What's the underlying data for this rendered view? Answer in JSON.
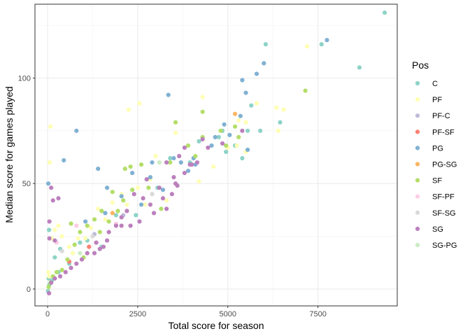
{
  "chart_data": {
    "type": "scatter",
    "title": "",
    "xlabel": "Total score for season",
    "ylabel": "Median score for games played",
    "xlim": [
      -350,
      9700
    ],
    "ylim": [
      -8,
      135
    ],
    "x_ticks": [
      0,
      2500,
      5000,
      7500
    ],
    "x_tick_labels": [
      "0",
      "2500",
      "5000",
      "7500"
    ],
    "y_ticks": [
      0,
      50,
      100
    ],
    "y_tick_labels": [
      "0",
      "50",
      "100"
    ],
    "grid": true,
    "legend": {
      "title": "Pos",
      "placement": "right",
      "entries": [
        "C",
        "PF",
        "PF-C",
        "PF-SF",
        "PG",
        "PG-SG",
        "SF",
        "SF-PF",
        "SF-SG",
        "SG",
        "SG-PG"
      ]
    },
    "colors": {
      "C": "#8DD3C7",
      "PF": "#FFFFB3",
      "PF-C": "#BEBADA",
      "PF-SF": "#FB8072",
      "PG": "#80B1D3",
      "PG-SG": "#FDB462",
      "SF": "#B3DE69",
      "SF-PF": "#FCCDE5",
      "SF-SG": "#D9D9D9",
      "SG": "#BC80BD",
      "SG-PG": "#CCEBC5"
    },
    "series": [
      {
        "name": "C",
        "points": [
          [
            9350,
            131
          ],
          [
            8650,
            105
          ],
          [
            7600,
            116
          ],
          [
            6050,
            116
          ],
          [
            5650,
            87
          ],
          [
            6450,
            79
          ],
          [
            5900,
            75
          ],
          [
            5550,
            75
          ],
          [
            4850,
            75
          ],
          [
            4200,
            70
          ],
          [
            3400,
            62
          ],
          [
            3050,
            48
          ],
          [
            2450,
            35
          ],
          [
            1900,
            35
          ],
          [
            1500,
            20
          ],
          [
            900,
            22
          ],
          [
            600,
            12
          ],
          [
            300,
            8
          ],
          [
            120,
            4
          ],
          [
            40,
            28
          ],
          [
            70,
            24
          ],
          [
            200,
            15
          ],
          [
            350,
            19
          ],
          [
            700,
            17
          ],
          [
            1100,
            23
          ],
          [
            50,
            2
          ],
          [
            10,
            -1
          ],
          [
            30,
            5
          ],
          [
            4750,
            72
          ],
          [
            5200,
            68
          ],
          [
            3950,
            60
          ],
          [
            2750,
            52
          ],
          [
            5400,
            62
          ],
          [
            4950,
            65
          ]
        ]
      },
      {
        "name": "PF",
        "points": [
          [
            7200,
            115
          ],
          [
            6350,
            86
          ],
          [
            6550,
            85
          ],
          [
            5800,
            88
          ],
          [
            5500,
            79
          ],
          [
            5300,
            80
          ],
          [
            5250,
            68
          ],
          [
            4300,
            91
          ],
          [
            3550,
            74
          ],
          [
            3000,
            63
          ],
          [
            2550,
            88
          ],
          [
            2250,
            85
          ],
          [
            2850,
            52
          ],
          [
            2500,
            48
          ],
          [
            2050,
            45
          ],
          [
            2200,
            40
          ],
          [
            1800,
            41
          ],
          [
            1600,
            33
          ],
          [
            1400,
            38
          ],
          [
            1200,
            29
          ],
          [
            1050,
            24
          ],
          [
            850,
            24
          ],
          [
            700,
            17
          ],
          [
            600,
            20
          ],
          [
            400,
            25
          ],
          [
            300,
            30
          ],
          [
            200,
            28
          ],
          [
            120,
            24
          ],
          [
            80,
            77
          ],
          [
            60,
            60
          ],
          [
            40,
            6
          ],
          [
            20,
            8
          ],
          [
            2700,
            40
          ],
          [
            3300,
            42
          ],
          [
            4200,
            51
          ],
          [
            5000,
            67
          ],
          [
            4600,
            58
          ],
          [
            5500,
            65
          ],
          [
            6400,
            75
          ]
        ]
      },
      {
        "name": "PF-C",
        "points": [
          [
            2100,
            35
          ],
          [
            1300,
            26
          ]
        ]
      },
      {
        "name": "PF-SF",
        "points": [
          [
            1150,
            20
          ],
          [
            600,
            13
          ]
        ]
      },
      {
        "name": "PG",
        "points": [
          [
            7750,
            118
          ],
          [
            6000,
            107
          ],
          [
            5800,
            102
          ],
          [
            5400,
            99
          ],
          [
            5500,
            93
          ],
          [
            5350,
            82
          ],
          [
            3350,
            92
          ],
          [
            800,
            75
          ],
          [
            450,
            61
          ],
          [
            1400,
            57
          ],
          [
            1650,
            48
          ],
          [
            2350,
            55
          ],
          [
            2900,
            60
          ],
          [
            3500,
            62
          ],
          [
            3700,
            60
          ],
          [
            4050,
            62
          ],
          [
            4550,
            68
          ],
          [
            4650,
            72
          ],
          [
            5050,
            73
          ],
          [
            5550,
            66
          ],
          [
            1050,
            32
          ],
          [
            1600,
            36
          ],
          [
            2600,
            40
          ],
          [
            3200,
            47
          ],
          [
            3900,
            56
          ],
          [
            2050,
            44
          ],
          [
            20,
            50
          ],
          [
            2850,
            53
          ],
          [
            4100,
            59
          ],
          [
            4900,
            78
          ]
        ]
      },
      {
        "name": "PG-SG",
        "points": [
          [
            5200,
            83
          ],
          [
            1800,
            36
          ]
        ]
      },
      {
        "name": "SF",
        "points": [
          [
            7150,
            94
          ],
          [
            5200,
            77
          ],
          [
            4800,
            75
          ],
          [
            4300,
            84
          ],
          [
            3550,
            79
          ],
          [
            4300,
            72
          ],
          [
            3900,
            68
          ],
          [
            3400,
            60
          ],
          [
            2600,
            59
          ],
          [
            2300,
            58
          ],
          [
            2150,
            57
          ],
          [
            1800,
            46
          ],
          [
            1500,
            37
          ],
          [
            1300,
            33
          ],
          [
            1100,
            30
          ],
          [
            900,
            27
          ],
          [
            750,
            21
          ],
          [
            550,
            14
          ],
          [
            400,
            9
          ],
          [
            250,
            8
          ],
          [
            150,
            6
          ],
          [
            80,
            3
          ],
          [
            30,
            1
          ],
          [
            1000,
            15
          ],
          [
            1700,
            32
          ],
          [
            2100,
            42
          ],
          [
            2800,
            48
          ],
          [
            3150,
            38
          ],
          [
            2350,
            47
          ],
          [
            1950,
            37
          ],
          [
            1450,
            27
          ],
          [
            650,
            31
          ],
          [
            4950,
            68
          ],
          [
            5300,
            72
          ],
          [
            4100,
            63
          ]
        ]
      },
      {
        "name": "SF-PF",
        "points": [
          [
            250,
            22
          ],
          [
            800,
            30
          ],
          [
            1900,
            31
          ]
        ]
      },
      {
        "name": "SF-SG",
        "points": [
          [
            1250,
            25
          ],
          [
            400,
            18
          ],
          [
            2900,
            45
          ]
        ]
      },
      {
        "name": "SG",
        "points": [
          [
            5400,
            75
          ],
          [
            4850,
            69
          ],
          [
            4300,
            71
          ],
          [
            3800,
            67
          ],
          [
            3650,
            63
          ],
          [
            3300,
            60
          ],
          [
            3800,
            55
          ],
          [
            3550,
            50
          ],
          [
            3100,
            48
          ],
          [
            2750,
            52
          ],
          [
            2400,
            45
          ],
          [
            2200,
            37
          ],
          [
            2050,
            34
          ],
          [
            1900,
            30
          ],
          [
            1650,
            23
          ],
          [
            1450,
            19
          ],
          [
            1300,
            17
          ],
          [
            1100,
            17
          ],
          [
            950,
            14
          ],
          [
            800,
            12
          ],
          [
            650,
            10
          ],
          [
            500,
            8
          ],
          [
            350,
            6
          ],
          [
            200,
            5
          ],
          [
            100,
            3
          ],
          [
            40,
            -2
          ],
          [
            150,
            42
          ],
          [
            300,
            43
          ],
          [
            100,
            48
          ],
          [
            50,
            32
          ],
          [
            50,
            24
          ],
          [
            200,
            23
          ],
          [
            2550,
            32
          ],
          [
            2950,
            36
          ],
          [
            3200,
            43
          ],
          [
            3450,
            45
          ],
          [
            2300,
            30
          ],
          [
            1700,
            27
          ],
          [
            1350,
            22
          ],
          [
            4150,
            60
          ],
          [
            3950,
            59
          ],
          [
            3500,
            53
          ],
          [
            2650,
            43
          ],
          [
            2850,
            40
          ],
          [
            4450,
            67
          ],
          [
            4000,
            59
          ],
          [
            3600,
            49
          ],
          [
            1550,
            20
          ],
          [
            2050,
            30
          ],
          [
            3300,
            38
          ]
        ]
      },
      {
        "name": "SG-PG",
        "points": [
          [
            900,
            17
          ],
          [
            3100,
            60
          ]
        ]
      }
    ]
  }
}
